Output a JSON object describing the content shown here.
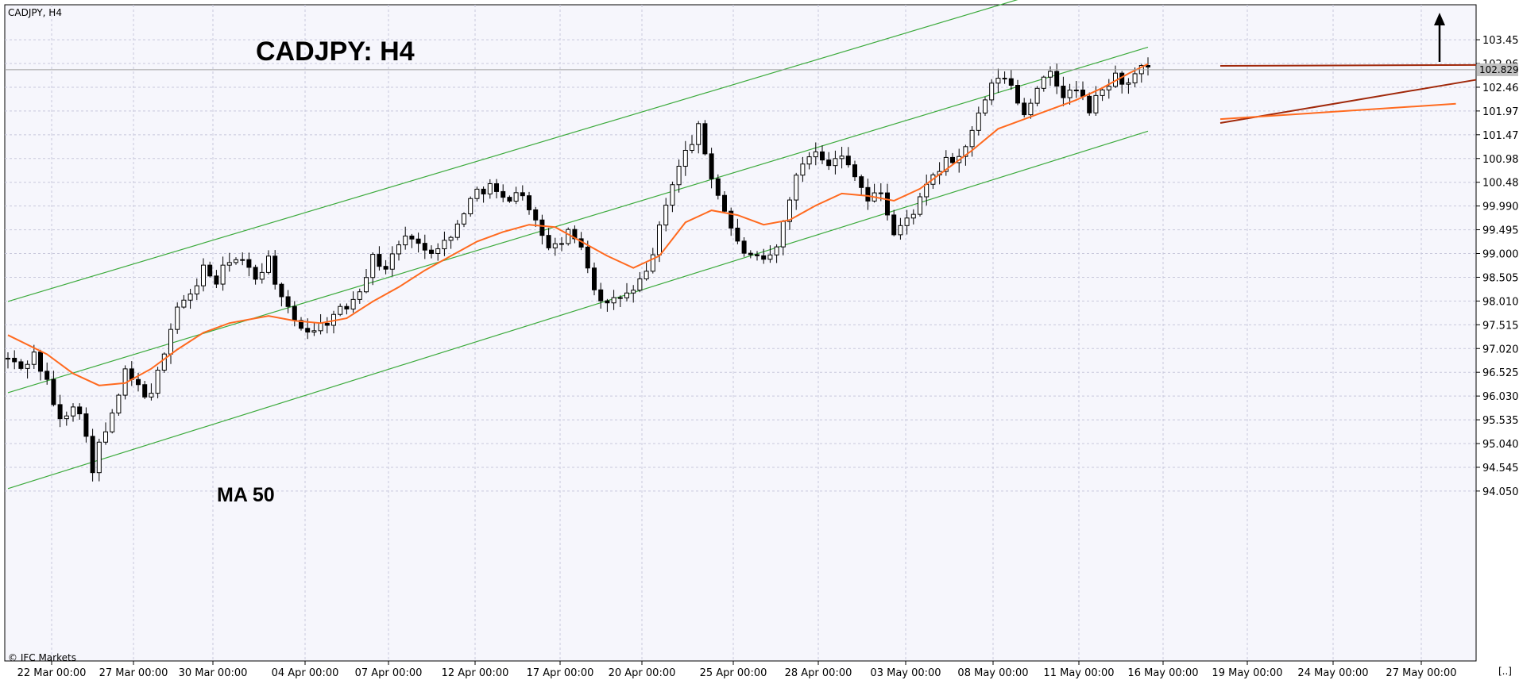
{
  "window": {
    "symbol_label": "CADJPY, H4",
    "watermark": "© IFC Markets",
    "corner_label": "[..]"
  },
  "chart_data": {
    "type": "candlestick",
    "title": "CADJPY: H4",
    "annotations": [
      "MA 50"
    ],
    "current_price": "102.829",
    "ylim": [
      93.8,
      104.3
    ],
    "y_ticks": [
      "103.455",
      "102.960",
      "102.465",
      "101.970",
      "101.475",
      "100.980",
      "100.485",
      "99.990",
      "99.495",
      "99.000",
      "98.505",
      "98.010",
      "97.515",
      "97.020",
      "96.525",
      "96.030",
      "95.535",
      "95.040",
      "94.545",
      "94.050"
    ],
    "x_ticks": [
      "22 Mar 00:00",
      "27 Mar 00:00",
      "30 Mar 00:00",
      "04 Apr 00:00",
      "07 Apr 00:00",
      "12 Apr 00:00",
      "17 Apr 00:00",
      "20 Apr 00:00",
      "25 Apr 00:00",
      "28 Apr 00:00",
      "03 May 00:00",
      "08 May 00:00",
      "11 May 00:00",
      "16 May 00:00",
      "19 May 00:00",
      "24 May 00:00",
      "27 May 00:00"
    ],
    "close_path": [
      [
        0,
        96.8
      ],
      [
        2,
        96.6
      ],
      [
        4,
        96.9
      ],
      [
        6,
        96.3
      ],
      [
        8,
        95.5
      ],
      [
        10,
        95.9
      ],
      [
        12,
        95.3
      ],
      [
        13,
        94.4
      ],
      [
        14,
        95.0
      ],
      [
        16,
        95.6
      ],
      [
        18,
        96.5
      ],
      [
        20,
        96.2
      ],
      [
        22,
        96.0
      ],
      [
        24,
        97.0
      ],
      [
        26,
        97.9
      ],
      [
        28,
        98.1
      ],
      [
        30,
        98.7
      ],
      [
        32,
        98.4
      ],
      [
        34,
        98.9
      ],
      [
        36,
        98.8
      ],
      [
        38,
        98.5
      ],
      [
        40,
        98.9
      ],
      [
        42,
        98.0
      ],
      [
        44,
        97.6
      ],
      [
        46,
        97.4
      ],
      [
        48,
        97.5
      ],
      [
        50,
        97.7
      ],
      [
        52,
        97.9
      ],
      [
        54,
        98.3
      ],
      [
        56,
        98.9
      ],
      [
        58,
        98.7
      ],
      [
        60,
        99.2
      ],
      [
        62,
        99.4
      ],
      [
        64,
        99.0
      ],
      [
        66,
        99.2
      ],
      [
        68,
        99.3
      ],
      [
        70,
        99.9
      ],
      [
        72,
        100.3
      ],
      [
        74,
        100.4
      ],
      [
        76,
        100.1
      ],
      [
        78,
        100.3
      ],
      [
        80,
        100.0
      ],
      [
        82,
        99.3
      ],
      [
        84,
        99.1
      ],
      [
        86,
        99.4
      ],
      [
        88,
        99.2
      ],
      [
        90,
        98.3
      ],
      [
        92,
        97.9
      ],
      [
        94,
        98.1
      ],
      [
        96,
        98.2
      ],
      [
        98,
        98.6
      ],
      [
        100,
        99.5
      ],
      [
        102,
        100.5
      ],
      [
        104,
        101.1
      ],
      [
        106,
        101.6
      ],
      [
        108,
        100.6
      ],
      [
        110,
        99.9
      ],
      [
        112,
        99.2
      ],
      [
        114,
        98.9
      ],
      [
        116,
        98.8
      ],
      [
        118,
        99.1
      ],
      [
        120,
        100.2
      ],
      [
        122,
        100.9
      ],
      [
        124,
        101.2
      ],
      [
        126,
        100.9
      ],
      [
        128,
        101.0
      ],
      [
        130,
        100.7
      ],
      [
        132,
        100.1
      ],
      [
        134,
        100.3
      ],
      [
        136,
        99.4
      ],
      [
        138,
        99.7
      ],
      [
        140,
        100.1
      ],
      [
        142,
        100.6
      ],
      [
        144,
        100.9
      ],
      [
        146,
        101.0
      ],
      [
        148,
        101.5
      ],
      [
        150,
        102.2
      ],
      [
        152,
        102.7
      ],
      [
        154,
        102.5
      ],
      [
        156,
        101.9
      ],
      [
        158,
        102.5
      ],
      [
        160,
        102.7
      ],
      [
        162,
        102.3
      ],
      [
        164,
        102.4
      ],
      [
        166,
        102.0
      ],
      [
        168,
        102.4
      ],
      [
        170,
        102.7
      ],
      [
        172,
        102.5
      ],
      [
        174,
        102.83
      ]
    ],
    "ma50_path": [
      [
        0,
        97.3
      ],
      [
        6,
        96.9
      ],
      [
        10,
        96.5
      ],
      [
        14,
        96.25
      ],
      [
        18,
        96.3
      ],
      [
        22,
        96.6
      ],
      [
        26,
        97.0
      ],
      [
        30,
        97.35
      ],
      [
        34,
        97.55
      ],
      [
        38,
        97.65
      ],
      [
        40,
        97.7
      ],
      [
        44,
        97.6
      ],
      [
        48,
        97.55
      ],
      [
        52,
        97.65
      ],
      [
        56,
        98.0
      ],
      [
        60,
        98.3
      ],
      [
        64,
        98.65
      ],
      [
        68,
        98.95
      ],
      [
        72,
        99.25
      ],
      [
        76,
        99.45
      ],
      [
        80,
        99.6
      ],
      [
        84,
        99.55
      ],
      [
        88,
        99.25
      ],
      [
        92,
        98.95
      ],
      [
        96,
        98.7
      ],
      [
        100,
        98.95
      ],
      [
        104,
        99.65
      ],
      [
        108,
        99.9
      ],
      [
        112,
        99.8
      ],
      [
        116,
        99.6
      ],
      [
        120,
        99.7
      ],
      [
        124,
        100.0
      ],
      [
        128,
        100.25
      ],
      [
        132,
        100.2
      ],
      [
        136,
        100.1
      ],
      [
        140,
        100.35
      ],
      [
        144,
        100.75
      ],
      [
        148,
        101.15
      ],
      [
        152,
        101.6
      ],
      [
        156,
        101.8
      ],
      [
        160,
        102.0
      ],
      [
        164,
        102.2
      ],
      [
        168,
        102.45
      ],
      [
        172,
        102.75
      ],
      [
        175,
        102.95
      ]
    ],
    "channel": {
      "upper": [
        [
          0,
          98.0
        ],
        [
          170,
          104.9
        ]
      ],
      "middle": [
        [
          0,
          96.1
        ],
        [
          175,
          103.3
        ]
      ],
      "lower": [
        [
          0,
          94.1
        ],
        [
          175,
          101.55
        ]
      ]
    },
    "triangle": {
      "resistance": [
        [
          183,
          102.91
        ],
        [
          221,
          102.93
        ]
      ],
      "support": [
        [
          183,
          101.72
        ],
        [
          221,
          102.62
        ]
      ],
      "ma_tail": [
        [
          183,
          101.8
        ],
        [
          218,
          102.12
        ]
      ]
    },
    "colors": {
      "bull": "#ffffff",
      "bear": "#000000",
      "ma50": "#ff6a1f",
      "channel": "#3caa3c",
      "triangle": "#a0280a",
      "grid": "#c8c8dc",
      "background": "#f6f6fc",
      "price_label_bg": "#c0c0c0"
    }
  }
}
